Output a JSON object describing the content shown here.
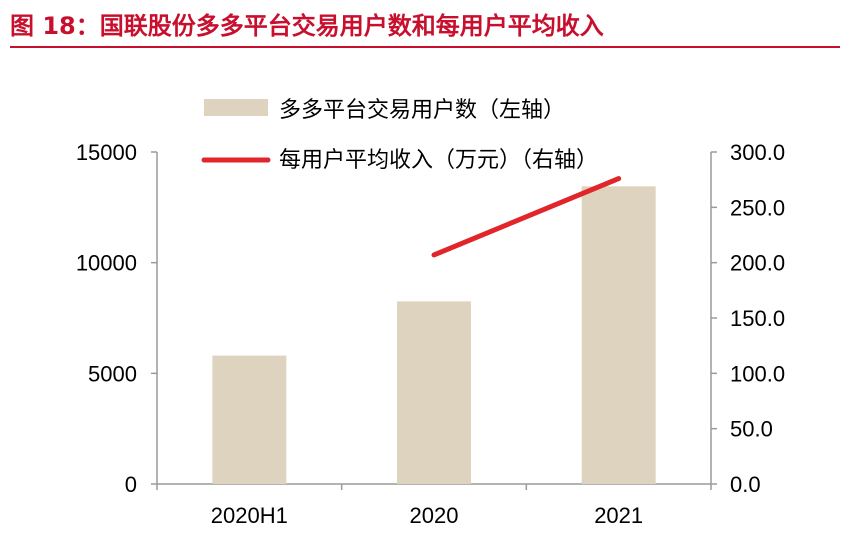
{
  "figure_title": "图 18：国联股份多多平台交易用户数和每用户平均收入",
  "colors": {
    "title": "#c8102e",
    "bar": "#ddd3bf",
    "line": "#e0262b",
    "axis": "#9a9a9a"
  },
  "chart_data": {
    "type": "bar",
    "categories": [
      "2020H1",
      "2020",
      "2021"
    ],
    "series": [
      {
        "name": "多多平台交易用户数（左轴）",
        "type": "bar",
        "axis": "left",
        "values": [
          5800,
          8250,
          13450
        ]
      },
      {
        "name": "每用户平均收入（万元）（右轴）",
        "type": "line",
        "axis": "right",
        "values": [
          null,
          207,
          276
        ]
      }
    ],
    "y_left": {
      "ylim": [
        0,
        15000
      ],
      "ticks": [
        "0",
        "5000",
        "10000",
        "15000"
      ]
    },
    "y_right": {
      "ylim": [
        0,
        300
      ],
      "ticks": [
        "0.0",
        "50.0",
        "100.0",
        "150.0",
        "200.0",
        "250.0",
        "300.0"
      ]
    },
    "legend_placement": "top",
    "grid": false
  }
}
